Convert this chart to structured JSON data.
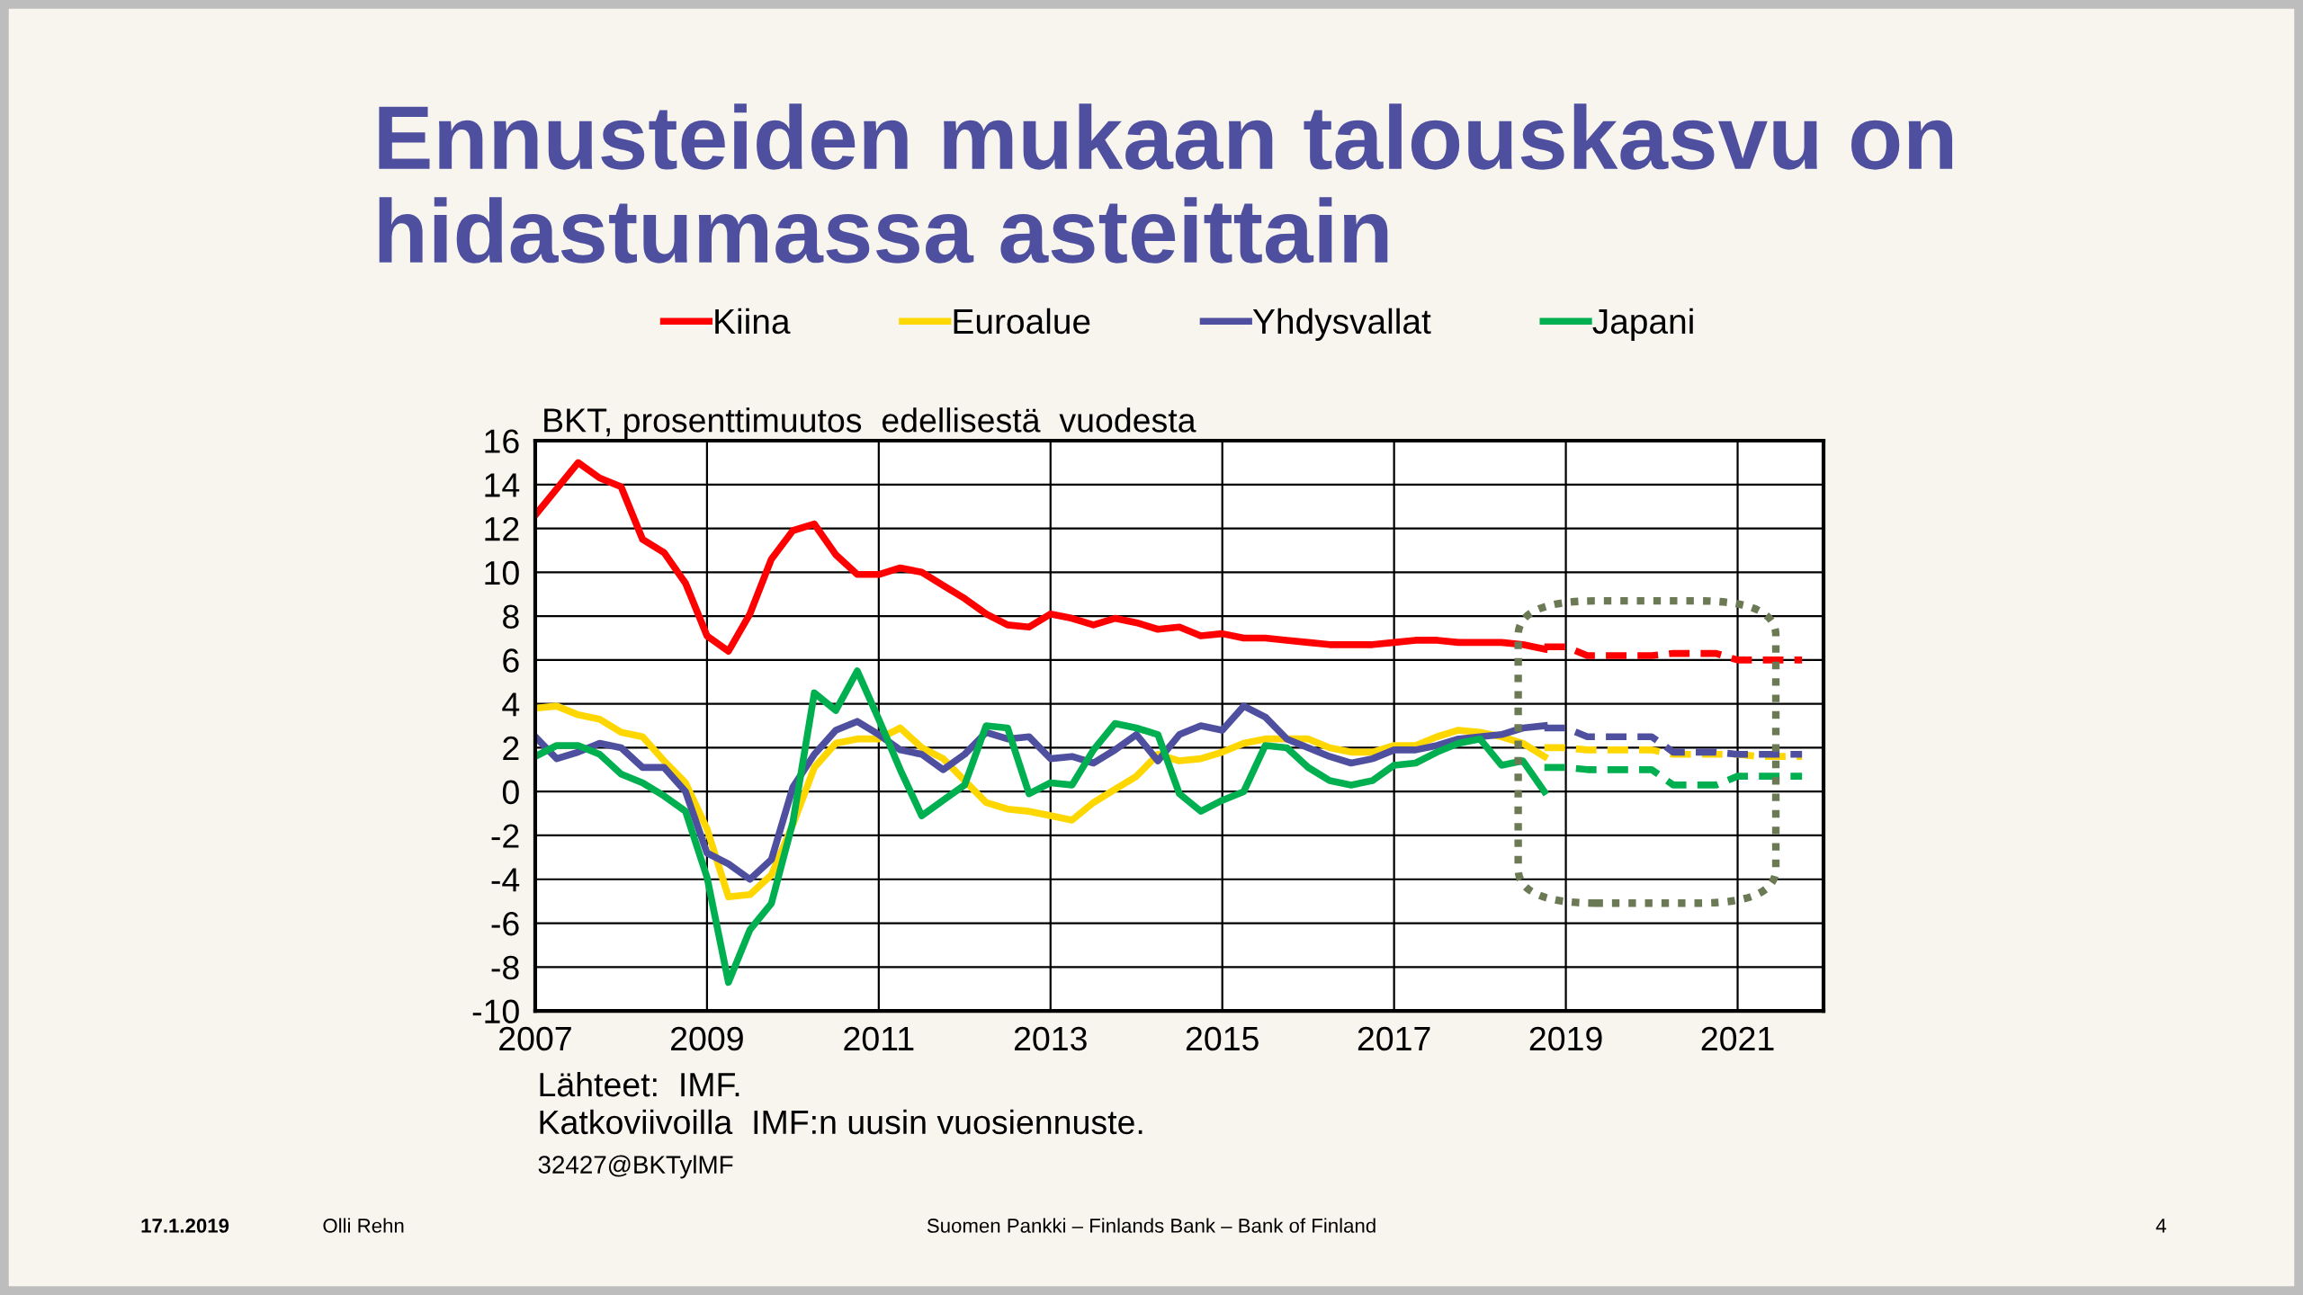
{
  "chart_data": {
    "type": "line",
    "title": "Ennusteiden mukaan talouskasvu on\nhidastumassa asteittain",
    "ylabel": "BKT, prosenttimuutos  edellisestä  vuodesta",
    "x": [
      2007.0,
      2007.25,
      2007.5,
      2007.75,
      2008.0,
      2008.25,
      2008.5,
      2008.75,
      2009.0,
      2009.25,
      2009.5,
      2009.75,
      2010.0,
      2010.25,
      2010.5,
      2010.75,
      2011.0,
      2011.25,
      2011.5,
      2011.75,
      2012.0,
      2012.25,
      2012.5,
      2012.75,
      2013.0,
      2013.25,
      2013.5,
      2013.75,
      2014.0,
      2014.25,
      2014.5,
      2014.75,
      2015.0,
      2015.25,
      2015.5,
      2015.75,
      2016.0,
      2016.25,
      2016.5,
      2016.75,
      2017.0,
      2017.25,
      2017.5,
      2017.75,
      2018.0,
      2018.25,
      2018.5,
      2018.75
    ],
    "xlim": [
      2007,
      2022
    ],
    "xticks": [
      2007,
      2009,
      2011,
      2013,
      2015,
      2017,
      2019,
      2021
    ],
    "ylim": [
      -10,
      16
    ],
    "yticks": [
      -10,
      -8,
      -6,
      -4,
      -2,
      0,
      2,
      4,
      6,
      8,
      10,
      12,
      14,
      16
    ],
    "grid": true,
    "legend": "top",
    "line_style": "solid",
    "marker": "none",
    "series": [
      {
        "name": "Kiina",
        "color": "#ff0000",
        "values": [
          12.6,
          13.8,
          15.0,
          14.3,
          13.9,
          11.5,
          10.9,
          9.5,
          7.1,
          6.4,
          8.1,
          10.6,
          11.9,
          12.2,
          10.8,
          9.9,
          9.9,
          10.2,
          10.0,
          9.4,
          8.8,
          8.1,
          7.6,
          7.5,
          8.1,
          7.9,
          7.6,
          7.9,
          7.7,
          7.4,
          7.5,
          7.1,
          7.2,
          7.0,
          7.0,
          6.9,
          6.8,
          6.7,
          6.7,
          6.7,
          6.8,
          6.9,
          6.9,
          6.8,
          6.8,
          6.8,
          6.7,
          6.5
        ]
      },
      {
        "name": "Euroalue",
        "color": "#ffd700",
        "values": [
          3.8,
          3.9,
          3.5,
          3.3,
          2.7,
          2.5,
          1.4,
          0.4,
          -1.7,
          -4.8,
          -4.7,
          -3.8,
          -1.5,
          1.1,
          2.2,
          2.4,
          2.4,
          2.9,
          2.0,
          1.5,
          0.5,
          -0.5,
          -0.8,
          -0.9,
          -1.1,
          -1.3,
          -0.5,
          0.1,
          0.7,
          1.7,
          1.4,
          1.5,
          1.8,
          2.2,
          2.4,
          2.4,
          2.4,
          2.0,
          1.8,
          1.8,
          2.1,
          2.1,
          2.5,
          2.8,
          2.7,
          2.5,
          2.2,
          1.6
        ]
      },
      {
        "name": "Yhdysvallat",
        "color": "#4f4f9f",
        "values": [
          2.5,
          1.5,
          1.8,
          2.2,
          2.0,
          1.1,
          1.1,
          0.0,
          -2.8,
          -3.3,
          -4.0,
          -3.1,
          0.2,
          1.7,
          2.8,
          3.2,
          2.6,
          1.9,
          1.7,
          1.0,
          1.7,
          2.7,
          2.4,
          2.5,
          1.5,
          1.6,
          1.3,
          1.9,
          2.6,
          1.4,
          2.6,
          3.0,
          2.8,
          3.9,
          3.4,
          2.4,
          2.0,
          1.6,
          1.3,
          1.5,
          1.9,
          1.9,
          2.1,
          2.4,
          2.5,
          2.6,
          2.9,
          3.0
        ]
      },
      {
        "name": "Japani",
        "color": "#00b050",
        "values": [
          1.6,
          2.1,
          2.1,
          1.7,
          0.8,
          0.4,
          -0.2,
          -0.9,
          -3.9,
          -8.7,
          -6.3,
          -5.1,
          -1.4,
          4.5,
          3.7,
          5.5,
          3.3,
          1.0,
          -1.1,
          -0.4,
          0.3,
          3.0,
          2.9,
          -0.1,
          0.4,
          0.3,
          1.9,
          3.1,
          2.9,
          2.6,
          -0.1,
          -0.9,
          -0.4,
          0.0,
          2.1,
          2.0,
          1.1,
          0.5,
          0.3,
          0.5,
          1.2,
          1.3,
          1.8,
          2.2,
          2.4,
          1.2,
          1.4,
          0.0
        ]
      },
      {
        "color": "#ff0000",
        "line_style": "dashed",
        "x": [
          2018.75,
          2019.0,
          2019.25,
          2019.5,
          2019.75,
          2020.0,
          2020.25,
          2020.5,
          2020.75,
          2021.0,
          2021.25,
          2021.5,
          2021.75
        ],
        "values": [
          6.6,
          6.6,
          6.2,
          6.2,
          6.2,
          6.2,
          6.3,
          6.3,
          6.3,
          6.0,
          6.0,
          6.0,
          6.0
        ]
      },
      {
        "color": "#ffd700",
        "line_style": "dashed",
        "x": [
          2018.75,
          2019.0,
          2019.25,
          2019.5,
          2019.75,
          2020.0,
          2020.25,
          2020.5,
          2020.75,
          2021.0,
          2021.25,
          2021.5,
          2021.75
        ],
        "values": [
          2.0,
          2.0,
          1.9,
          1.9,
          1.9,
          1.9,
          1.7,
          1.7,
          1.7,
          1.7,
          1.6,
          1.6,
          1.6
        ]
      },
      {
        "color": "#4f4f9f",
        "line_style": "dashed",
        "x": [
          2018.75,
          2019.0,
          2019.25,
          2019.5,
          2019.75,
          2020.0,
          2020.25,
          2020.5,
          2020.75,
          2021.0,
          2021.25,
          2021.5,
          2021.75
        ],
        "values": [
          2.9,
          2.9,
          2.5,
          2.5,
          2.5,
          2.5,
          1.8,
          1.8,
          1.8,
          1.7,
          1.7,
          1.7,
          1.7
        ]
      },
      {
        "color": "#00b050",
        "line_style": "dashed",
        "x": [
          2018.75,
          2019.0,
          2019.25,
          2019.5,
          2019.75,
          2020.0,
          2020.25,
          2020.5,
          2020.75,
          2021.0,
          2021.25,
          2021.5,
          2021.75
        ],
        "values": [
          1.1,
          1.1,
          1.0,
          1.0,
          1.0,
          1.0,
          0.3,
          0.3,
          0.3,
          0.7,
          0.7,
          0.7,
          0.7
        ]
      }
    ],
    "annotations": [
      "Lähteet:  IMF.",
      "Katkoviivoilla  IMF:n uusin vuosiennuste.",
      "32427@BKTylMF",
      "17.1.2019",
      "Olli Rehn",
      "Suomen Pankki – Finlands Bank – Bank of Finland",
      "4"
    ]
  }
}
